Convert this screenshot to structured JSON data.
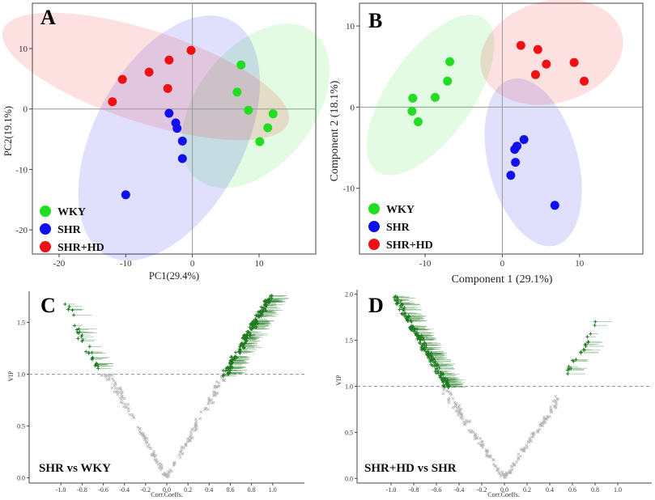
{
  "chart_data": [
    {
      "panel": "A",
      "type": "scatter",
      "xlabel": "PC1(29.4%)",
      "ylabel": "PC2(19.1%)",
      "xlim": [
        -24,
        18.5
      ],
      "ylim": [
        -24,
        17.5
      ],
      "xticks": [
        -20,
        -10,
        0,
        10
      ],
      "yticks": [
        -20,
        -10,
        0,
        10
      ],
      "legend": [
        "WKY",
        "SHR",
        "SHR+HD"
      ],
      "series": [
        {
          "name": "WKY",
          "color": "#22dd22",
          "points": [
            [
              7.3,
              7.3
            ],
            [
              6.7,
              2.8
            ],
            [
              8.4,
              -0.2
            ],
            [
              12.1,
              -0.8
            ],
            [
              11.3,
              -3.1
            ],
            [
              10.1,
              -5.4
            ]
          ],
          "ellipse": {
            "cx": 9.5,
            "cy": 0.5,
            "rx": 8.8,
            "ry": 15.5,
            "angle": 38
          }
        },
        {
          "name": "SHR",
          "color": "#1010ee",
          "points": [
            [
              -3.5,
              -0.7
            ],
            [
              -2.5,
              -2.3
            ],
            [
              -2.3,
              -3.2
            ],
            [
              -1.5,
              -5.3
            ],
            [
              -1.5,
              -8.2
            ],
            [
              -10.0,
              -14.2
            ]
          ],
          "ellipse": {
            "cx": -3.5,
            "cy": -4.8,
            "rx": 11.2,
            "ry": 22.0,
            "angle": 28
          }
        },
        {
          "name": "SHR+HD",
          "color": "#ee1111",
          "points": [
            [
              -0.2,
              9.7
            ],
            [
              -3.5,
              8.1
            ],
            [
              -6.5,
              6.1
            ],
            [
              -10.5,
              4.9
            ],
            [
              -3.7,
              3.4
            ],
            [
              -12.0,
              1.2
            ]
          ],
          "ellipse": {
            "cx": -7.0,
            "cy": 5.4,
            "rx": 22.5,
            "ry": 7.6,
            "angle": 18
          }
        }
      ]
    },
    {
      "panel": "B",
      "type": "scatter",
      "xlabel": "Component 1 (29.1%)",
      "ylabel": "Component 2 (18.1%)",
      "xlim": [
        -18.5,
        18.2
      ],
      "ylim": [
        -18.1,
        12.8
      ],
      "xticks": [
        -10,
        0,
        10
      ],
      "yticks": [
        -10,
        0,
        10
      ],
      "legend": [
        "WKY",
        "SHR",
        "SHR+HD"
      ],
      "series": [
        {
          "name": "WKY",
          "color": "#22dd22",
          "points": [
            [
              -6.8,
              5.6
            ],
            [
              -7.1,
              3.2
            ],
            [
              -8.7,
              1.2
            ],
            [
              -11.6,
              1.1
            ],
            [
              -11.7,
              -0.5
            ],
            [
              -10.9,
              -1.8
            ]
          ],
          "ellipse": {
            "cx": -9.3,
            "cy": 1.5,
            "rx": 5.5,
            "ry": 11.5,
            "angle": 35
          }
        },
        {
          "name": "SHR",
          "color": "#1010ee",
          "points": [
            [
              2.8,
              -4.0
            ],
            [
              1.9,
              -4.8
            ],
            [
              1.6,
              -5.2
            ],
            [
              1.7,
              -6.8
            ],
            [
              1.1,
              -8.4
            ],
            [
              6.8,
              -12.1
            ]
          ],
          "ellipse": {
            "cx": 4.0,
            "cy": -6.8,
            "rx": 5.8,
            "ry": 10.6,
            "angle": -15
          }
        },
        {
          "name": "SHR+HD",
          "color": "#ee1111",
          "points": [
            [
              2.4,
              7.6
            ],
            [
              4.6,
              7.1
            ],
            [
              5.7,
              5.3
            ],
            [
              9.3,
              5.5
            ],
            [
              4.3,
              4.0
            ],
            [
              10.6,
              3.2
            ]
          ],
          "ellipse": {
            "cx": 6.4,
            "cy": 6.8,
            "rx": 9.4,
            "ry": 6.3,
            "angle": -15
          }
        }
      ]
    },
    {
      "panel": "C",
      "type": "scatter",
      "comparison": "SHR vs WKY",
      "xlabel": "Corr.Coeffs.",
      "ylabel": "VIP",
      "xlim": [
        -1.3,
        1.3
      ],
      "ylim": [
        -0.05,
        1.8
      ],
      "xticks": [
        -1.0,
        -0.8,
        -0.6,
        -0.4,
        -0.2,
        0.0,
        0.2,
        0.4,
        0.6,
        0.8,
        1.0
      ],
      "yticks": [
        0.0,
        0.5,
        1.0,
        1.5
      ],
      "threshold": 1.0,
      "sig_left": [
        {
          "x": [
            -0.87,
            -0.65
          ],
          "vip": [
            1.47,
            1.05
          ],
          "n": 28
        },
        {
          "x": [
            -0.95,
            -0.85
          ],
          "vip": [
            1.68,
            1.55
          ],
          "n": 6
        }
      ],
      "sig_right": [
        {
          "x": [
            0.55,
            0.98
          ],
          "vip": [
            1.0,
            1.75
          ],
          "n": 180
        }
      ],
      "nonsig_left": [
        -0.62,
        0.0
      ],
      "nonsig_right": [
        0.0,
        0.57
      ],
      "nonsig_n": 200
    },
    {
      "panel": "D",
      "type": "scatter",
      "comparison": "SHR+HD vs SHR",
      "xlabel": "Corr.Coeffs.",
      "ylabel": "VIP",
      "xlim": [
        -1.3,
        1.3
      ],
      "ylim": [
        -0.05,
        2.05
      ],
      "xticks": [
        -1.0,
        -0.8,
        -0.6,
        -0.4,
        -0.2,
        0.0,
        0.2,
        0.4,
        0.6,
        0.8,
        1.0
      ],
      "yticks": [
        0.0,
        0.5,
        1.0,
        1.5,
        2.0
      ],
      "threshold": 1.0,
      "sig_left": [
        {
          "x": [
            -0.97,
            -0.5
          ],
          "vip": [
            1.97,
            1.0
          ],
          "n": 180
        }
      ],
      "sig_right": [
        {
          "x": [
            0.5,
            0.82
          ],
          "vip": [
            1.05,
            1.68
          ],
          "n": 22
        }
      ],
      "nonsig_left": [
        -0.55,
        0.0
      ],
      "nonsig_right": [
        0.0,
        0.48
      ],
      "nonsig_n": 190
    }
  ],
  "panels": {
    "A": {
      "letter": "A",
      "xlabel": "PC1(29.4%)",
      "ylabel": "PC2(19.1%)"
    },
    "B": {
      "letter": "B",
      "xlabel": "Component 1 (29.1%)",
      "ylabel": "Component 2 (18.1%)"
    },
    "C": {
      "letter": "C",
      "xlabel": "Corr.Coeffs.",
      "ylabel": "VIP",
      "comparison": "SHR vs WKY"
    },
    "D": {
      "letter": "D",
      "xlabel": "Corr.Coeffs.",
      "ylabel": "VIP",
      "comparison": "SHR+HD vs SHR"
    }
  },
  "legend": {
    "items": [
      {
        "label": "WKY",
        "color": "#22dd22"
      },
      {
        "label": "SHR",
        "color": "#1010ee"
      },
      {
        "label": "SHR+HD",
        "color": "#ee1111"
      }
    ]
  },
  "colors": {
    "sig": "#1e7a1e",
    "nonsig": "#b5b5b5",
    "frame": "#333333",
    "grid0": "#999999"
  }
}
